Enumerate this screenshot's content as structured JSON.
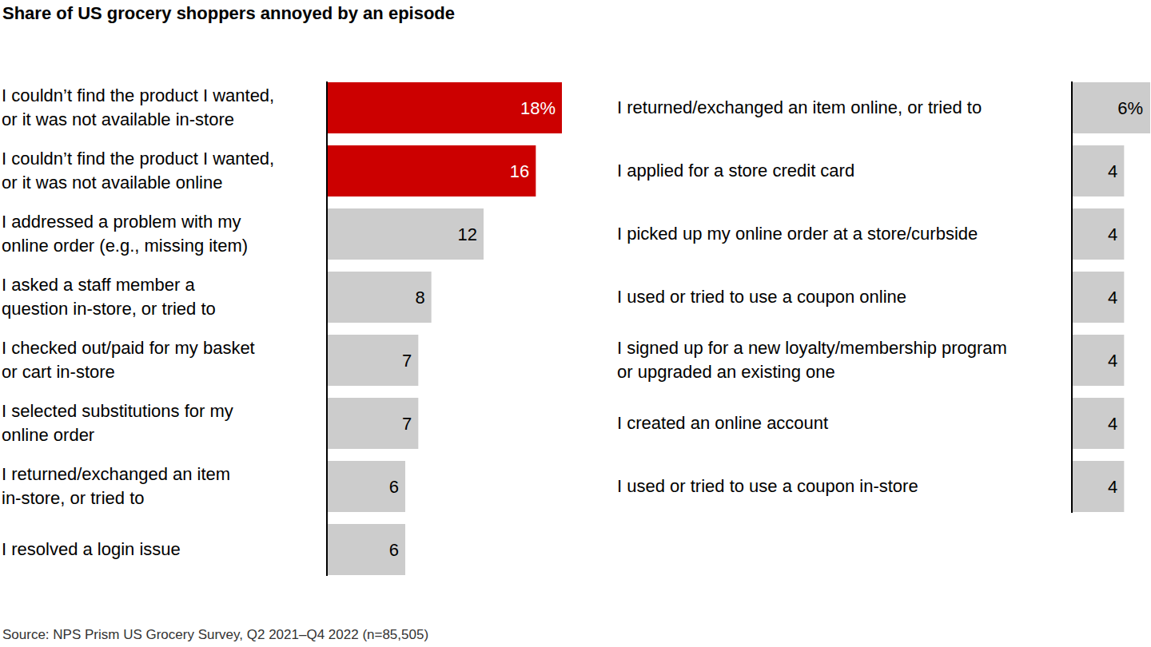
{
  "chart_data": {
    "type": "bar",
    "orientation": "horizontal",
    "title": "Share of US grocery shoppers annoyed by an episode",
    "source": "Source: NPS Prism US Grocery Survey, Q2 2021–Q4 2022 (n=85,505)",
    "categories": [
      "I couldn’t find the product I wanted,\nor it was not available in-store",
      "I couldn’t find the product I wanted,\nor it was not available online",
      "I addressed a problem with my\nonline order (e.g., missing item)",
      "I asked a staff member a\nquestion in-store, or tried to",
      "I checked out/paid for my basket\nor cart in-store",
      "I selected substitutions for my\nonline order",
      "I returned/exchanged an item\nin-store, or tried to",
      "I resolved a login issue",
      "I returned/exchanged an item online, or tried to",
      "I applied for a store credit card",
      "I picked up my online order at a store/curbside",
      "I used or tried to use a coupon online",
      "I signed up for a new loyalty/membership program\nor upgraded an existing one",
      "I created an online account",
      "I used or tried to use a coupon in-store"
    ],
    "values": [
      18,
      16,
      12,
      8,
      7,
      7,
      6,
      6,
      6,
      4,
      4,
      4,
      4,
      4,
      4
    ],
    "value_labels": [
      "18%",
      "16",
      "12",
      "8",
      "7",
      "7",
      "6",
      "6",
      "6%",
      "4",
      "4",
      "4",
      "4",
      "4",
      "4"
    ],
    "colors": [
      "#cc0000",
      "#cc0000",
      "#cccccc",
      "#cccccc",
      "#cccccc",
      "#cccccc",
      "#cccccc",
      "#cccccc",
      "#cccccc",
      "#cccccc",
      "#cccccc",
      "#cccccc",
      "#cccccc",
      "#cccccc",
      "#cccccc"
    ],
    "xlim": [
      0,
      18
    ],
    "data_labels": true,
    "grid": false,
    "tick_labels": "y"
  }
}
